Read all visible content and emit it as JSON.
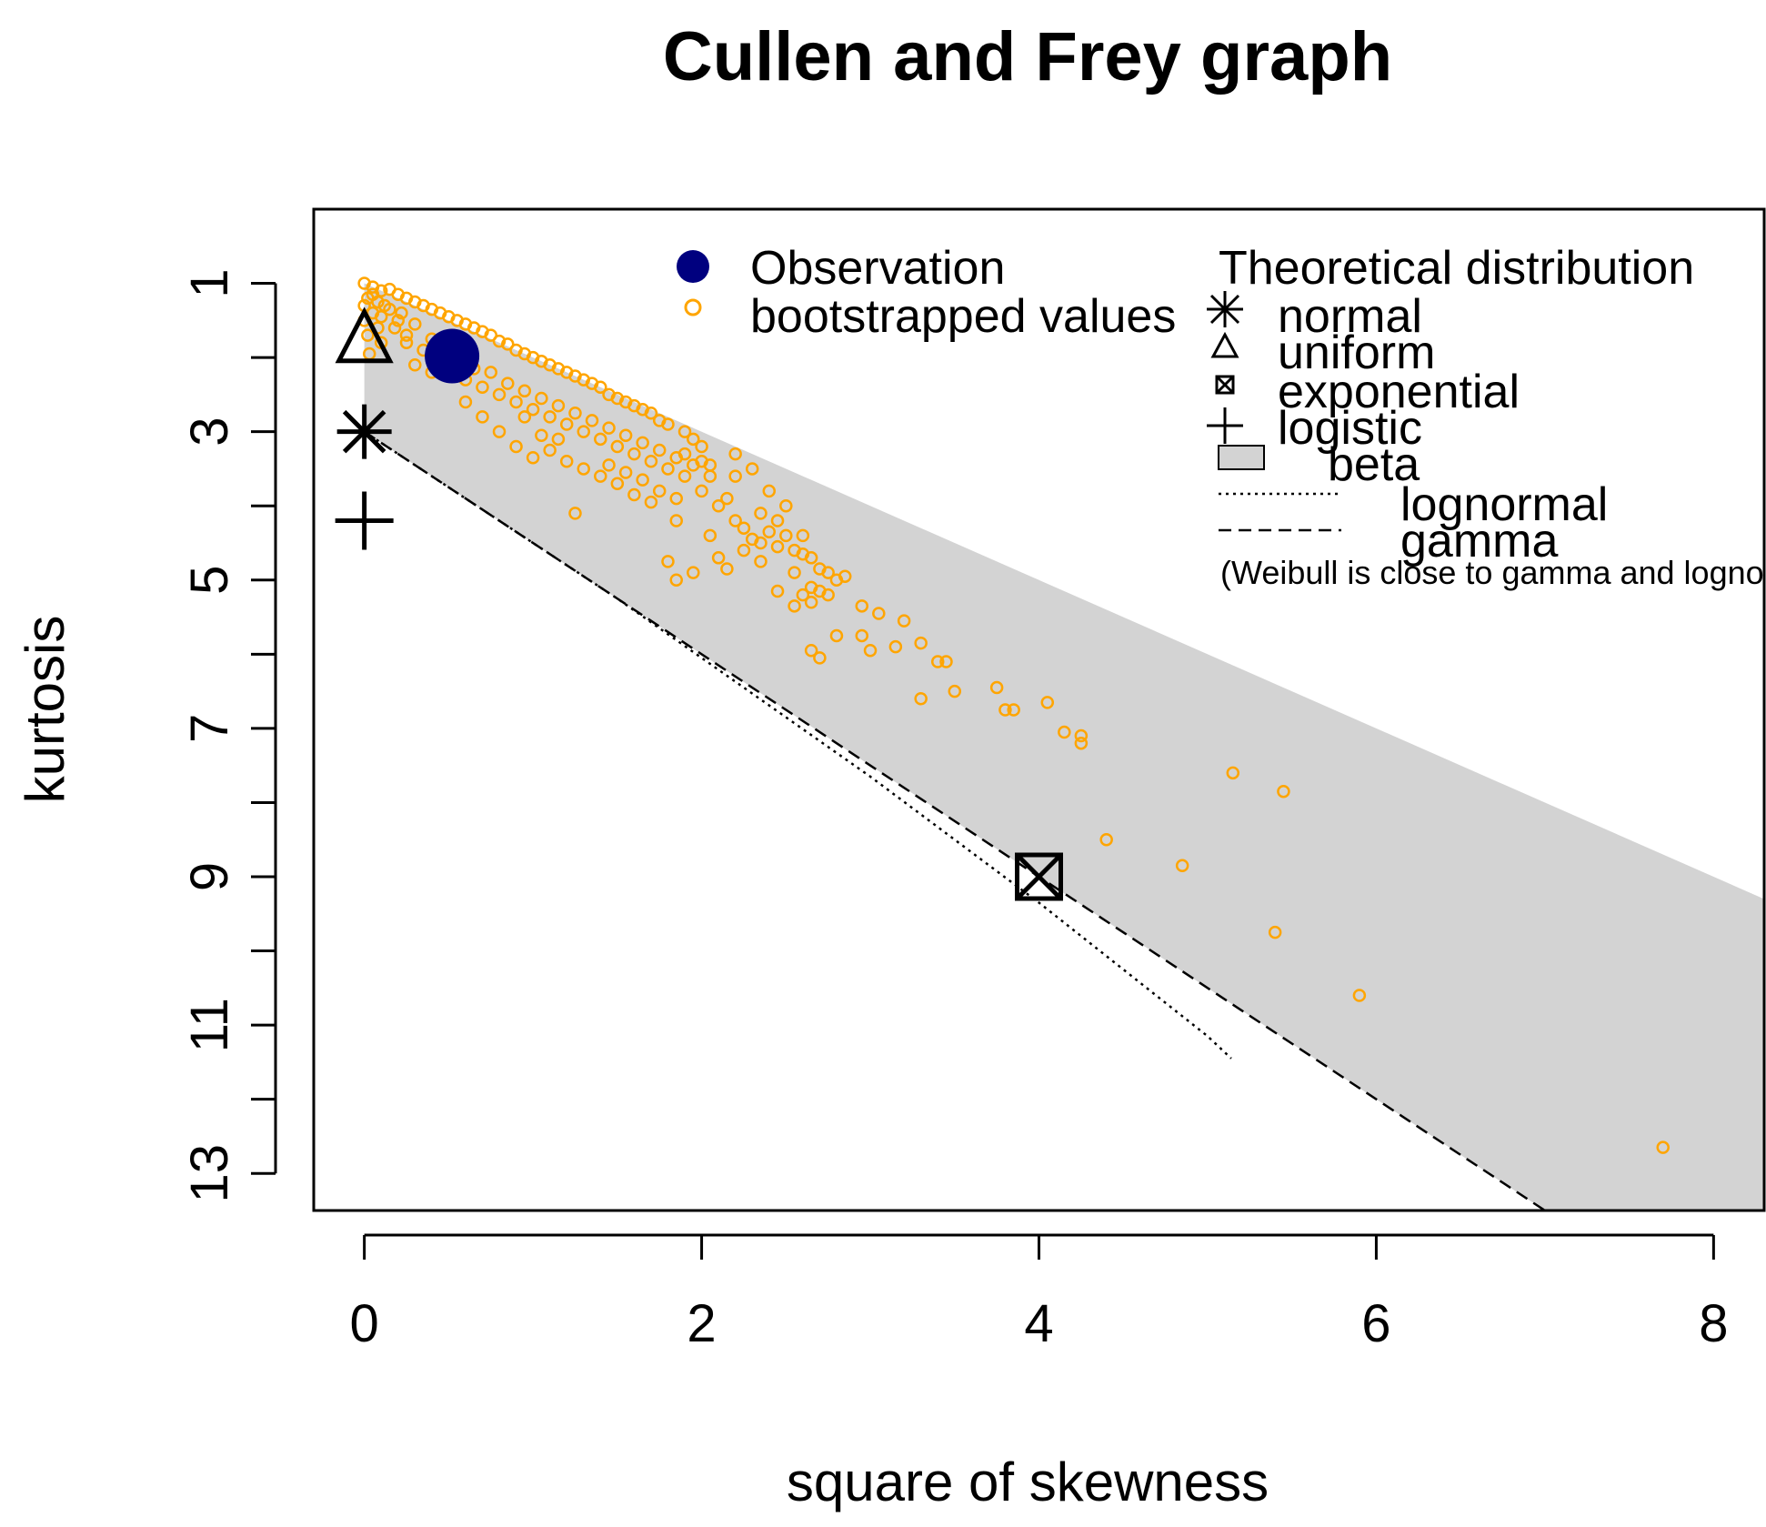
{
  "chart_data": {
    "type": "scatter",
    "title": "Cullen and Frey graph",
    "xlabel": "square of skewness",
    "ylabel": "kurtosis",
    "xlim": [
      -0.3,
      8.3
    ],
    "ylim": [
      13.5,
      0
    ],
    "x_ticks": [
      0,
      2,
      4,
      6,
      8
    ],
    "y_ticks": [
      1,
      2,
      3,
      4,
      5,
      6,
      7,
      8,
      9,
      10,
      11,
      12,
      13
    ],
    "y_tick_labels": [
      "1",
      "3",
      "5",
      "7",
      "9",
      "11",
      "13"
    ],
    "colors": {
      "observation": "#00007f",
      "bootstrap": "#ffa500",
      "beta_region": "#d3d3d3",
      "axes": "#000000"
    },
    "observation": {
      "name": "Observation",
      "x": 0.52,
      "y": 1.98
    },
    "bootstrap": {
      "name": "bootstrapped values",
      "points": [
        [
          0.0,
          1.0
        ],
        [
          0.05,
          1.05
        ],
        [
          0.1,
          1.1
        ],
        [
          0.15,
          1.08
        ],
        [
          0.2,
          1.15
        ],
        [
          0.25,
          1.2
        ],
        [
          0.3,
          1.25
        ],
        [
          0.35,
          1.3
        ],
        [
          0.4,
          1.35
        ],
        [
          0.45,
          1.4
        ],
        [
          0.5,
          1.45
        ],
        [
          0.55,
          1.5
        ],
        [
          0.6,
          1.55
        ],
        [
          0.65,
          1.6
        ],
        [
          0.7,
          1.65
        ],
        [
          0.75,
          1.7
        ],
        [
          0.8,
          1.78
        ],
        [
          0.85,
          1.82
        ],
        [
          0.9,
          1.9
        ],
        [
          0.95,
          1.95
        ],
        [
          1.0,
          2.0
        ],
        [
          1.05,
          2.05
        ],
        [
          1.1,
          2.1
        ],
        [
          1.15,
          2.15
        ],
        [
          1.2,
          2.2
        ],
        [
          1.25,
          2.25
        ],
        [
          1.3,
          2.3
        ],
        [
          1.35,
          2.35
        ],
        [
          1.4,
          2.4
        ],
        [
          1.45,
          2.5
        ],
        [
          1.5,
          2.55
        ],
        [
          1.55,
          2.6
        ],
        [
          1.6,
          2.65
        ],
        [
          1.65,
          2.7
        ],
        [
          1.7,
          2.75
        ],
        [
          1.75,
          2.85
        ],
        [
          1.8,
          2.9
        ],
        [
          1.9,
          3.0
        ],
        [
          1.95,
          3.1
        ],
        [
          2.0,
          3.2
        ],
        [
          0.02,
          1.2
        ],
        [
          0.05,
          1.4
        ],
        [
          0.08,
          1.6
        ],
        [
          0.1,
          1.8
        ],
        [
          0.12,
          1.3
        ],
        [
          0.2,
          1.5
        ],
        [
          0.25,
          1.7
        ],
        [
          0.3,
          1.55
        ],
        [
          0.35,
          1.9
        ],
        [
          0.4,
          1.75
        ],
        [
          0.45,
          1.85
        ],
        [
          0.55,
          2.1
        ],
        [
          0.6,
          2.3
        ],
        [
          0.65,
          2.15
        ],
        [
          0.7,
          2.4
        ],
        [
          0.75,
          2.2
        ],
        [
          0.8,
          2.5
        ],
        [
          0.85,
          2.35
        ],
        [
          0.9,
          2.6
        ],
        [
          0.95,
          2.45
        ],
        [
          1.0,
          2.7
        ],
        [
          1.05,
          2.55
        ],
        [
          1.1,
          2.8
        ],
        [
          1.15,
          2.65
        ],
        [
          1.2,
          2.9
        ],
        [
          1.25,
          2.75
        ],
        [
          1.3,
          3.0
        ],
        [
          1.35,
          2.85
        ],
        [
          1.4,
          3.1
        ],
        [
          1.45,
          2.95
        ],
        [
          1.5,
          3.2
        ],
        [
          1.55,
          3.05
        ],
        [
          1.6,
          3.3
        ],
        [
          1.65,
          3.15
        ],
        [
          1.7,
          3.4
        ],
        [
          1.75,
          3.25
        ],
        [
          1.8,
          3.5
        ],
        [
          1.85,
          3.35
        ],
        [
          1.9,
          3.6
        ],
        [
          1.95,
          3.45
        ],
        [
          0.25,
          1.8
        ],
        [
          0.3,
          2.1
        ],
        [
          0.4,
          2.2
        ],
        [
          0.6,
          2.6
        ],
        [
          0.7,
          2.8
        ],
        [
          0.8,
          3.0
        ],
        [
          0.9,
          3.2
        ],
        [
          1.0,
          3.35
        ],
        [
          1.1,
          3.25
        ],
        [
          1.2,
          3.4
        ],
        [
          1.3,
          3.5
        ],
        [
          1.4,
          3.6
        ],
        [
          1.5,
          3.7
        ],
        [
          1.6,
          3.85
        ],
        [
          1.7,
          3.95
        ],
        [
          1.85,
          3.9
        ],
        [
          0.95,
          2.8
        ],
        [
          1.05,
          3.05
        ],
        [
          1.15,
          3.1
        ],
        [
          1.25,
          4.1
        ],
        [
          1.45,
          3.45
        ],
        [
          1.55,
          3.55
        ],
        [
          1.65,
          3.65
        ],
        [
          1.75,
          3.8
        ],
        [
          1.85,
          4.2
        ],
        [
          2.0,
          3.8
        ],
        [
          2.05,
          3.6
        ],
        [
          2.1,
          4.0
        ],
        [
          2.15,
          3.9
        ],
        [
          2.2,
          4.2
        ],
        [
          2.25,
          4.3
        ],
        [
          2.3,
          4.45
        ],
        [
          2.35,
          4.5
        ],
        [
          2.4,
          4.35
        ],
        [
          2.45,
          4.55
        ],
        [
          2.5,
          4.4
        ],
        [
          2.55,
          4.6
        ],
        [
          2.6,
          4.65
        ],
        [
          2.65,
          4.7
        ],
        [
          2.7,
          4.85
        ],
        [
          2.75,
          4.9
        ],
        [
          2.8,
          5.0
        ],
        [
          2.85,
          4.95
        ],
        [
          2.6,
          4.4
        ],
        [
          2.3,
          3.5
        ],
        [
          2.2,
          3.6
        ],
        [
          2.4,
          3.8
        ],
        [
          2.5,
          4.0
        ],
        [
          2.05,
          4.4
        ],
        [
          1.8,
          4.75
        ],
        [
          1.85,
          5.0
        ],
        [
          1.95,
          4.9
        ],
        [
          2.1,
          4.7
        ],
        [
          2.15,
          4.85
        ],
        [
          2.25,
          4.6
        ],
        [
          2.35,
          4.75
        ],
        [
          2.55,
          4.9
        ],
        [
          2.6,
          5.2
        ],
        [
          2.65,
          5.1
        ],
        [
          2.7,
          5.15
        ],
        [
          2.75,
          5.2
        ],
        [
          2.55,
          5.35
        ],
        [
          2.45,
          5.15
        ],
        [
          2.65,
          5.3
        ],
        [
          2.0,
          3.4
        ],
        [
          2.05,
          3.45
        ],
        [
          1.9,
          3.3
        ],
        [
          2.2,
          3.3
        ],
        [
          2.45,
          4.2
        ],
        [
          2.35,
          4.1
        ],
        [
          2.95,
          5.35
        ],
        [
          3.05,
          5.45
        ],
        [
          3.2,
          5.55
        ],
        [
          3.3,
          5.85
        ],
        [
          3.4,
          6.1
        ],
        [
          3.45,
          6.1
        ],
        [
          2.95,
          5.75
        ],
        [
          3.0,
          5.95
        ],
        [
          3.15,
          5.9
        ],
        [
          2.65,
          5.95
        ],
        [
          2.7,
          6.05
        ],
        [
          2.8,
          5.75
        ],
        [
          3.3,
          6.6
        ],
        [
          3.5,
          6.5
        ],
        [
          3.75,
          6.45
        ],
        [
          3.8,
          6.75
        ],
        [
          3.85,
          6.75
        ],
        [
          4.05,
          6.65
        ],
        [
          4.15,
          7.05
        ],
        [
          4.25,
          7.2
        ],
        [
          4.25,
          7.1
        ],
        [
          5.15,
          7.6
        ],
        [
          5.45,
          7.85
        ],
        [
          4.4,
          8.5
        ],
        [
          4.85,
          8.85
        ],
        [
          5.4,
          9.75
        ],
        [
          5.9,
          10.6
        ],
        [
          7.7,
          12.65
        ],
        [
          0.0,
          1.3
        ],
        [
          0.0,
          1.5
        ],
        [
          0.02,
          1.7
        ],
        [
          0.03,
          1.95
        ],
        [
          0.05,
          1.15
        ],
        [
          0.08,
          1.25
        ],
        [
          0.1,
          1.45
        ],
        [
          0.15,
          1.35
        ],
        [
          0.18,
          1.6
        ],
        [
          0.22,
          1.4
        ]
      ]
    },
    "theoretical": [
      {
        "name": "normal",
        "x": 0,
        "y": 3,
        "marker": "asterisk"
      },
      {
        "name": "uniform",
        "x": 0,
        "y": 1.8,
        "marker": "triangle"
      },
      {
        "name": "exponential",
        "x": 4,
        "y": 9,
        "marker": "boxed-x"
      },
      {
        "name": "logistic",
        "x": 0,
        "y": 4.2,
        "marker": "plus"
      }
    ],
    "beta_region": {
      "name": "beta",
      "lower_y_formula": "y = x + 1",
      "upper_y_formula": "y = 1.5x + 3"
    },
    "lognormal_line": {
      "name": "lognormal",
      "x": [
        0.0,
        0.5,
        1.0,
        1.5,
        2.0,
        2.5,
        3.0,
        3.5,
        4.0,
        4.5,
        5.0,
        5.14
      ],
      "y": [
        3.0,
        3.75,
        4.5,
        5.25,
        6.05,
        6.85,
        7.65,
        8.5,
        9.35,
        10.25,
        11.15,
        11.45
      ]
    },
    "gamma_line": {
      "name": "gamma",
      "formula": "y = 1.5x + 3",
      "x_range": [
        0,
        7.0
      ]
    },
    "legend": {
      "left": [
        "Observation",
        "bootstrapped values"
      ],
      "right_title": "Theoretical distribution",
      "right": [
        "normal",
        "uniform",
        "exponential",
        "logistic",
        "beta",
        "lognormal",
        "gamma"
      ],
      "note": "(Weibull is close to gamma and lognormal)"
    }
  }
}
